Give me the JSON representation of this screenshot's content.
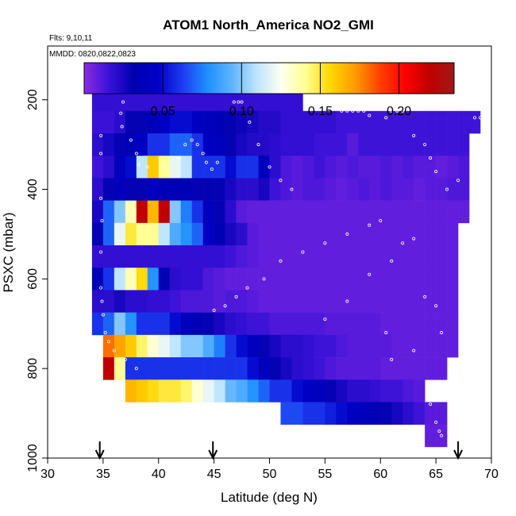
{
  "chart_data": {
    "type": "heatmap",
    "title": "ATOM1 North_America NO2_GMI",
    "flights_note": "Flts: 9,10,11",
    "dates_note": "MMDD: 0820,0822,0823",
    "xlabel": "Latitude (deg N)",
    "ylabel": "PSXC (mbar)",
    "xlim": [
      30,
      70
    ],
    "ylim": [
      1000,
      80
    ],
    "y_reversed": true,
    "x_ticks": [
      30,
      35,
      40,
      45,
      50,
      55,
      60,
      65,
      70
    ],
    "y_ticks": [
      200,
      400,
      600,
      800,
      1000
    ],
    "colorbar": {
      "range": [
        0,
        0.235
      ],
      "ticks": [
        0.05,
        0.1,
        0.15,
        0.2
      ],
      "tick_labels": [
        "0.05",
        "0.10",
        "0.15",
        "0.20"
      ],
      "colors": [
        "#8a2be2",
        "#3b12d8",
        "#0000b0",
        "#0000c8",
        "#1e3cf0",
        "#1e90ff",
        "#5fb4ff",
        "#bfe4ff",
        "#fffff0",
        "#ffff90",
        "#ffd700",
        "#ff9a00",
        "#ff4000",
        "#ff0000",
        "#c00000",
        "#a01818"
      ]
    },
    "arrows_latitude": [
      34.7,
      44.9,
      67.0
    ],
    "bin_size": {
      "lat": 1,
      "psxc": 50
    },
    "grid": false,
    "legend": "none",
    "bins": [
      {
        "p": 200,
        "lat": [
          34,
          53
        ],
        "v": [
          0.018,
          0.018,
          0.018,
          0.018,
          0.018,
          0.018,
          0.018,
          0.018,
          0.018,
          0.018,
          0.018,
          0.018,
          0.018,
          0.018,
          0.018,
          0.018,
          0.018,
          0.018,
          0.018
        ]
      },
      {
        "p": 250,
        "lat": [
          34,
          69
        ],
        "v": [
          0.016,
          0.016,
          0.02,
          0.03,
          0.03,
          0.035,
          0.045,
          0.05,
          0.05,
          0.045,
          0.04,
          0.035,
          0.03,
          0.028,
          0.025,
          0.022,
          0.022,
          0.018,
          0.018,
          0.018,
          0.018,
          0.018,
          0.015,
          0.015,
          0.015,
          0.015,
          0.015,
          0.015,
          0.015,
          0.015,
          0.015,
          0.015,
          0.015,
          0.015,
          0.015
        ]
      },
      {
        "p": 300,
        "lat": [
          34,
          68
        ],
        "v": [
          0.02,
          0.025,
          0.03,
          0.035,
          0.045,
          0.06,
          0.06,
          0.07,
          0.07,
          0.06,
          0.045,
          0.04,
          0.03,
          0.025,
          0.022,
          0.022,
          0.02,
          0.018,
          0.018,
          0.018,
          0.015,
          0.015,
          0.015,
          0.01,
          0.015,
          0.015,
          0.015,
          0.015,
          0.015,
          0.015,
          0.015,
          0.015,
          0.015,
          0.015
        ]
      },
      {
        "p": 350,
        "lat": [
          34,
          68
        ],
        "v": [
          0.015,
          0.02,
          0.04,
          0.05,
          0.11,
          0.16,
          0.14,
          0.12,
          0.11,
          0.06,
          0.06,
          0.06,
          0.05,
          0.06,
          0.06,
          0.04,
          0.02,
          0.012,
          0.01,
          0.012,
          0.015,
          0.012,
          0.01,
          0.012,
          0.01,
          0.01,
          0.012,
          0.01,
          0.012,
          0.01,
          0.01,
          0.008,
          0.01,
          0.012
        ]
      },
      {
        "p": 400,
        "lat": [
          34,
          68
        ],
        "v": [
          0.02,
          0.03,
          0.04,
          0.03,
          0.03,
          0.04,
          0.035,
          0.035,
          0.035,
          0.03,
          0.03,
          0.03,
          0.025,
          0.02,
          0.02,
          0.025,
          0.015,
          0.012,
          0.01,
          0.012,
          0.012,
          0.01,
          0.008,
          0.01,
          0.012,
          0.01,
          0.012,
          0.01,
          0.01,
          0.008,
          0.01,
          0.01,
          0.012,
          0.012
        ]
      },
      {
        "p": 450,
        "lat": [
          34,
          68
        ],
        "v": [
          0.025,
          0.07,
          0.1,
          0.135,
          0.22,
          0.165,
          0.22,
          0.1,
          0.075,
          0.06,
          0.04,
          0.03,
          0.02,
          0.01,
          0.008,
          0.008,
          0.008,
          0.008,
          0.008,
          0.008,
          0.008,
          0.008,
          0.008,
          0.008,
          0.008,
          0.008,
          0.008,
          0.008,
          0.008,
          0.008,
          0.008,
          0.008,
          0.008,
          0.008
        ]
      },
      {
        "p": 500,
        "lat": [
          34,
          67
        ],
        "v": [
          0.03,
          0.07,
          0.12,
          0.15,
          0.14,
          0.14,
          0.11,
          0.09,
          0.08,
          0.07,
          0.045,
          0.035,
          0.025,
          0.02,
          0.01,
          0.008,
          0.008,
          0.008,
          0.008,
          0.008,
          0.008,
          0.008,
          0.008,
          0.008,
          0.008,
          0.008,
          0.008,
          0.008,
          0.008,
          0.008,
          0.008,
          0.008,
          0.008,
          0.008
        ]
      },
      {
        "p": 550,
        "lat": [
          34,
          67
        ],
        "v": [
          0.018,
          0.018,
          0.018,
          0.018,
          0.018,
          0.018,
          0.018,
          0.018,
          0.018,
          0.018,
          0.018,
          0.018,
          0.015,
          0.012,
          0.01,
          0.008,
          0.008,
          0.008,
          0.008,
          0.008,
          0.008,
          0.008,
          0.008,
          0.008,
          0.008,
          0.008,
          0.008,
          0.008,
          0.008,
          0.008,
          0.008,
          0.008,
          0.008,
          0.008
        ]
      },
      {
        "p": 600,
        "lat": [
          34,
          67
        ],
        "v": [
          0.035,
          0.06,
          0.11,
          0.135,
          0.155,
          0.08,
          0.03,
          0.02,
          0.018,
          0.018,
          0.012,
          0.01,
          0.008,
          0.008,
          0.008,
          0.008,
          0.008,
          0.008,
          0.008,
          0.008,
          0.008,
          0.008,
          0.008,
          0.008,
          0.008,
          0.008,
          0.008,
          0.008,
          0.008,
          0.008,
          0.008,
          0.008,
          0.008,
          0.008
        ]
      },
      {
        "p": 650,
        "lat": [
          34,
          67
        ],
        "v": [
          0.02,
          0.02,
          0.025,
          0.02,
          0.02,
          0.018,
          0.018,
          0.015,
          0.012,
          0.012,
          0.012,
          0.01,
          0.012,
          0.012,
          0.01,
          0.008,
          0.008,
          0.008,
          0.008,
          0.008,
          0.008,
          0.008,
          0.008,
          0.008,
          0.008,
          0.008,
          0.008,
          0.008,
          0.008,
          0.008,
          0.008,
          0.008,
          0.008,
          0.005
        ]
      },
      {
        "p": 700,
        "lat": [
          34,
          67
        ],
        "v": [
          0.06,
          0.07,
          0.1,
          0.08,
          0.06,
          0.06,
          0.06,
          0.05,
          0.04,
          0.035,
          0.03,
          0.025,
          0.02,
          0.018,
          0.015,
          0.015,
          0.012,
          0.012,
          0.012,
          0.012,
          0.012,
          0.01,
          0.01,
          0.01,
          0.01,
          0.01,
          0.008,
          0.008,
          0.008,
          0.008,
          0.008,
          0.008,
          0.008,
          0.008
        ]
      },
      {
        "p": 750,
        "lat": [
          35,
          67
        ],
        "v": [
          0.18,
          0.17,
          0.16,
          0.145,
          0.13,
          0.12,
          0.11,
          0.1,
          0.1,
          0.09,
          0.075,
          0.06,
          0.05,
          0.04,
          0.03,
          0.025,
          0.02,
          0.02,
          0.018,
          0.015,
          0.015,
          0.012,
          0.01,
          0.01,
          0.01,
          0.01,
          0.008,
          0.008,
          0.008,
          0.008,
          0.008,
          0.008,
          0.008
        ]
      },
      {
        "p": 800,
        "lat": [
          35,
          66
        ],
        "v": [
          0.22,
          0.14,
          0.06,
          0.06,
          0.06,
          0.06,
          0.06,
          0.06,
          0.06,
          0.06,
          0.06,
          0.06,
          0.06,
          0.05,
          0.04,
          0.03,
          0.025,
          0.02,
          0.018,
          0.015,
          0.012,
          0.01,
          0.01,
          0.01,
          0.01,
          0.008,
          0.008,
          0.008,
          0.008,
          0.008,
          0.008
        ]
      },
      {
        "p": 850,
        "lat": [
          37,
          64
        ],
        "v": [
          0.165,
          0.16,
          0.155,
          0.15,
          0.15,
          0.145,
          0.13,
          0.12,
          0.11,
          0.095,
          0.09,
          0.08,
          0.07,
          0.06,
          0.06,
          0.05,
          0.045,
          0.04,
          0.03,
          0.025,
          0.02,
          0.02,
          0.018,
          0.015,
          0.015,
          0.012,
          0.01
        ]
      },
      {
        "p": 900,
        "lat": [
          51,
          66
        ],
        "v": [
          0.065,
          0.065,
          0.06,
          0.06,
          0.055,
          0.05,
          0.045,
          0.04,
          0.035,
          0.03,
          0.025,
          0.02,
          0.015,
          0.01,
          0.01
        ]
      },
      {
        "p": 950,
        "lat": [
          64,
          66
        ],
        "v": [
          0.008,
          0.008
        ]
      }
    ],
    "tracks": [
      {
        "lat": [
          35.2,
          35.5,
          35.8,
          36.1,
          36.5,
          36.8,
          36.6,
          36.7,
          37.5,
          38.0,
          38.2,
          39.0,
          40.5,
          41.8,
          42.4,
          43.0,
          43.5,
          44.0,
          44.3,
          44.8,
          45.3,
          46.8,
          47.2,
          47.5,
          48.2,
          49.0,
          50.0,
          51.0,
          52.0
        ],
        "p": [
          180,
          180,
          180,
          180,
          180,
          205,
          230,
          260,
          290,
          320,
          345,
          350,
          350,
          330,
          300,
          290,
          300,
          320,
          340,
          355,
          340,
          205,
          205,
          205,
          250,
          300,
          350,
          380,
          400
        ]
      },
      {
        "lat": [
          56.5,
          57.0,
          57.5,
          58.0,
          58.5,
          59.0,
          60.5,
          61.0,
          61.5,
          62.0,
          63.0,
          64.0,
          64.5,
          65.0,
          66.0,
          67.0,
          68.5,
          69.0,
          69.5
        ],
        "p": [
          225,
          225,
          225,
          225,
          225,
          235,
          240,
          225,
          225,
          225,
          280,
          300,
          330,
          360,
          400,
          380,
          240,
          240,
          240
        ]
      },
      {
        "lat": [
          34.8,
          34.8,
          34.8,
          34.9,
          34.8,
          34.8,
          34.9,
          35.0,
          35.2,
          35.5,
          36.0,
          37.0,
          38.0
        ],
        "p": [
          280,
          320,
          420,
          470,
          540,
          620,
          650,
          680,
          720,
          740,
          760,
          780,
          800
        ]
      },
      {
        "lat": [
          45.0,
          46.0,
          47.0,
          48.0,
          49.5,
          51.0,
          53.0,
          55.0,
          57.0,
          59.0,
          60.0,
          61.0,
          62.0,
          63.0,
          64.0,
          65.0,
          65.5
        ],
        "p": [
          670,
          660,
          640,
          620,
          600,
          560,
          540,
          520,
          500,
          480,
          470,
          560,
          520,
          510,
          640,
          660,
          720
        ]
      },
      {
        "lat": [
          55.0,
          57.0,
          59.0,
          60.5,
          61.0,
          63.0,
          64.5,
          65.0,
          65.3,
          65.5
        ],
        "p": [
          690,
          650,
          590,
          720,
          780,
          760,
          880,
          920,
          940,
          950
        ]
      }
    ]
  }
}
